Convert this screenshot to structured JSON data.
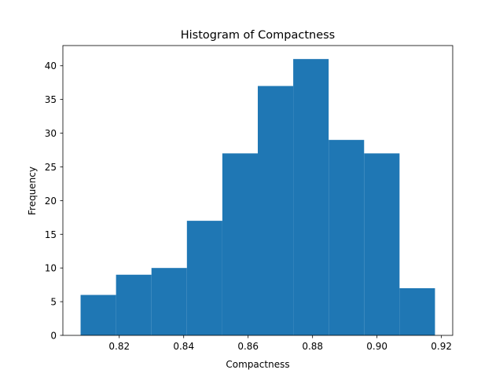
{
  "chart_data": {
    "type": "bar",
    "title": "Histogram of Compactness",
    "xlabel": "Compactness",
    "ylabel": "Frequency",
    "xlim": [
      0.8025,
      0.9235
    ],
    "ylim": [
      0,
      43
    ],
    "xticks": [
      0.82,
      0.84,
      0.86,
      0.88,
      0.9,
      0.92
    ],
    "xtick_labels": [
      "0.82",
      "0.84",
      "0.86",
      "0.88",
      "0.90",
      "0.92"
    ],
    "yticks": [
      0,
      5,
      10,
      15,
      20,
      25,
      30,
      35,
      40
    ],
    "ytick_labels": [
      "0",
      "5",
      "10",
      "15",
      "20",
      "25",
      "30",
      "35",
      "40"
    ],
    "bin_edges": [
      0.808,
      0.819,
      0.83,
      0.841,
      0.852,
      0.863,
      0.874,
      0.885,
      0.896,
      0.907,
      0.918
    ],
    "values": [
      6,
      9,
      10,
      17,
      27,
      37,
      41,
      29,
      27,
      7
    ],
    "bar_color": "#1f77b4",
    "grid": false,
    "legend": "none"
  }
}
